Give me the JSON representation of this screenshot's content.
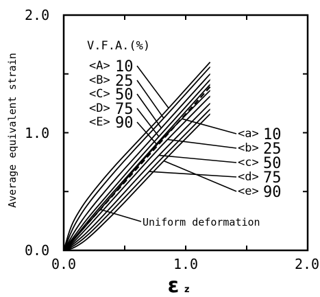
{
  "chart_data": {
    "type": "line",
    "xlabel": "ε",
    "xlabel_subscript": "z",
    "ylabel": "Average equivalent strain",
    "xlim": [
      0.0,
      2.0
    ],
    "ylim": [
      0.0,
      2.0
    ],
    "x_ticks": [
      "0.0",
      "1.0",
      "2.0"
    ],
    "y_ticks": [
      "0.0",
      "1.0",
      "2.0"
    ],
    "legend_title": "V.F.A.(%)",
    "upper_legend": [
      {
        "tag": "<A>",
        "value": "10"
      },
      {
        "tag": "<B>",
        "value": "25"
      },
      {
        "tag": "<C>",
        "value": "50"
      },
      {
        "tag": "<D>",
        "value": "75"
      },
      {
        "tag": "<E>",
        "value": "90"
      }
    ],
    "lower_legend": [
      {
        "tag": "<a>",
        "value": "10"
      },
      {
        "tag": "<b>",
        "value": "25"
      },
      {
        "tag": "<c>",
        "value": "50"
      },
      {
        "tag": "<d>",
        "value": "75"
      },
      {
        "tag": "<e>",
        "value": "90"
      }
    ],
    "uniform_label": "Uniform deformation",
    "series": [
      {
        "name": "<A>10",
        "style": "solid",
        "x": [
          0,
          0.05,
          0.1,
          0.2,
          0.4,
          0.6,
          0.8,
          1.0,
          1.2
        ],
        "y": [
          0,
          0.18,
          0.29,
          0.45,
          0.7,
          0.92,
          1.14,
          1.37,
          1.6
        ]
      },
      {
        "name": "<B>25",
        "style": "solid",
        "x": [
          0,
          0.05,
          0.1,
          0.2,
          0.4,
          0.6,
          0.8,
          1.0,
          1.2
        ],
        "y": [
          0,
          0.13,
          0.24,
          0.4,
          0.65,
          0.88,
          1.1,
          1.33,
          1.56
        ]
      },
      {
        "name": "<C>50",
        "style": "solid",
        "x": [
          0,
          0.05,
          0.1,
          0.2,
          0.4,
          0.6,
          0.8,
          1.0,
          1.2
        ],
        "y": [
          0,
          0.09,
          0.18,
          0.33,
          0.58,
          0.81,
          1.04,
          1.27,
          1.5
        ]
      },
      {
        "name": "<D>75",
        "style": "solid",
        "x": [
          0,
          0.05,
          0.1,
          0.2,
          0.4,
          0.6,
          0.8,
          1.0,
          1.2
        ],
        "y": [
          0,
          0.07,
          0.14,
          0.28,
          0.52,
          0.76,
          0.99,
          1.22,
          1.45
        ]
      },
      {
        "name": "<E>90",
        "style": "solid",
        "x": [
          0,
          0.05,
          0.1,
          0.2,
          0.4,
          0.6,
          0.8,
          1.0,
          1.2
        ],
        "y": [
          0,
          0.06,
          0.12,
          0.25,
          0.49,
          0.72,
          0.95,
          1.18,
          1.41
        ]
      },
      {
        "name": "Uniform deformation",
        "style": "dashed",
        "x": [
          0,
          1.2
        ],
        "y": [
          0,
          1.39
        ]
      },
      {
        "name": "<a>10",
        "style": "solid",
        "x": [
          0,
          0.05,
          0.1,
          0.2,
          0.4,
          0.6,
          0.8,
          1.0,
          1.2
        ],
        "y": [
          0,
          0.05,
          0.11,
          0.23,
          0.47,
          0.71,
          0.94,
          1.15,
          1.36
        ]
      },
      {
        "name": "<b>25",
        "style": "solid",
        "x": [
          0,
          0.05,
          0.1,
          0.2,
          0.4,
          0.6,
          0.8,
          1.0,
          1.2
        ],
        "y": [
          0,
          0.04,
          0.09,
          0.2,
          0.43,
          0.66,
          0.89,
          1.1,
          1.31
        ]
      },
      {
        "name": "<c>50",
        "style": "solid",
        "x": [
          0,
          0.05,
          0.1,
          0.2,
          0.4,
          0.6,
          0.8,
          1.0,
          1.2
        ],
        "y": [
          0,
          0.03,
          0.07,
          0.16,
          0.38,
          0.61,
          0.83,
          1.04,
          1.25
        ]
      },
      {
        "name": "<d>75",
        "style": "solid",
        "x": [
          0,
          0.05,
          0.1,
          0.2,
          0.4,
          0.6,
          0.8,
          1.0,
          1.2
        ],
        "y": [
          0,
          0.02,
          0.05,
          0.13,
          0.34,
          0.56,
          0.78,
          0.99,
          1.2
        ]
      },
      {
        "name": "<e>90",
        "style": "solid",
        "x": [
          0,
          0.05,
          0.1,
          0.2,
          0.4,
          0.6,
          0.8,
          1.0,
          1.2
        ],
        "y": [
          0,
          0.01,
          0.03,
          0.1,
          0.3,
          0.52,
          0.74,
          0.95,
          1.16
        ]
      }
    ]
  }
}
